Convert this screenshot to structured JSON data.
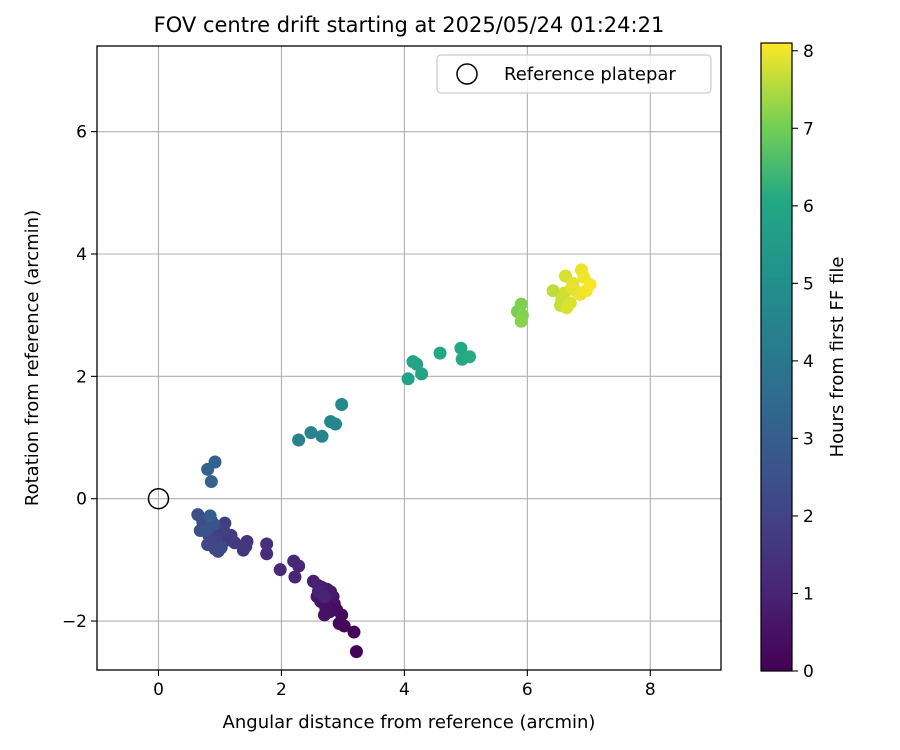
{
  "chart_data": {
    "type": "scatter",
    "title": "FOV centre drift starting at 2025/05/24 01:24:21",
    "xlabel": "Angular distance from reference (arcmin)",
    "ylabel": "Rotation from reference (arcmin)",
    "xlim": [
      -1.0,
      9.15
    ],
    "ylim": [
      -2.8,
      7.4
    ],
    "xticks": [
      0,
      2,
      4,
      6,
      8
    ],
    "yticks": [
      -2,
      0,
      2,
      4,
      6
    ],
    "xtick_labels": [
      "0",
      "2",
      "4",
      "6",
      "8"
    ],
    "ytick_labels": [
      "−2",
      "0",
      "2",
      "4",
      "6"
    ],
    "grid": true,
    "legend": {
      "position": "top-right",
      "entries": [
        {
          "label": "Reference platepar",
          "marker": "open-circle"
        }
      ]
    },
    "reference_point": {
      "x": 0,
      "y": 0
    },
    "colorbar": {
      "label": "Hours from first FF file",
      "range": [
        0,
        8.1
      ],
      "ticks": [
        0,
        1,
        2,
        3,
        4,
        5,
        6,
        7,
        8
      ],
      "tick_labels": [
        "0",
        "1",
        "2",
        "3",
        "4",
        "5",
        "6",
        "7",
        "8"
      ],
      "colormap": "viridis",
      "position": "right"
    },
    "points": [
      {
        "x": 3.22,
        "y": -2.5,
        "h": 0.05
      },
      {
        "x": 3.18,
        "y": -2.18,
        "h": 0.1
      },
      {
        "x": 3.02,
        "y": -2.08,
        "h": 0.15
      },
      {
        "x": 2.94,
        "y": -2.04,
        "h": 0.2
      },
      {
        "x": 2.98,
        "y": -1.9,
        "h": 0.25
      },
      {
        "x": 2.9,
        "y": -1.82,
        "h": 0.3
      },
      {
        "x": 2.86,
        "y": -1.72,
        "h": 0.35
      },
      {
        "x": 2.78,
        "y": -1.85,
        "h": 0.4
      },
      {
        "x": 2.72,
        "y": -1.78,
        "h": 0.45
      },
      {
        "x": 2.7,
        "y": -1.9,
        "h": 0.5
      },
      {
        "x": 2.64,
        "y": -1.68,
        "h": 0.55
      },
      {
        "x": 2.58,
        "y": -1.6,
        "h": 0.6
      },
      {
        "x": 2.84,
        "y": -1.6,
        "h": 0.65
      },
      {
        "x": 2.8,
        "y": -1.52,
        "h": 0.7
      },
      {
        "x": 2.74,
        "y": -1.48,
        "h": 0.75
      },
      {
        "x": 2.66,
        "y": -1.45,
        "h": 0.8
      },
      {
        "x": 2.6,
        "y": -1.42,
        "h": 0.85
      },
      {
        "x": 2.52,
        "y": -1.35,
        "h": 0.9
      },
      {
        "x": 2.6,
        "y": -1.52,
        "h": 0.95
      },
      {
        "x": 2.7,
        "y": -1.6,
        "h": 1.0
      },
      {
        "x": 2.28,
        "y": -1.1,
        "h": 1.05
      },
      {
        "x": 2.2,
        "y": -1.02,
        "h": 1.1
      },
      {
        "x": 2.22,
        "y": -1.28,
        "h": 1.15
      },
      {
        "x": 1.98,
        "y": -1.16,
        "h": 1.2
      },
      {
        "x": 1.76,
        "y": -0.9,
        "h": 1.3
      },
      {
        "x": 1.76,
        "y": -0.74,
        "h": 1.4
      },
      {
        "x": 1.44,
        "y": -0.7,
        "h": 1.5
      },
      {
        "x": 1.38,
        "y": -0.84,
        "h": 1.55
      },
      {
        "x": 1.42,
        "y": -0.78,
        "h": 1.6
      },
      {
        "x": 1.24,
        "y": -0.72,
        "h": 1.65
      },
      {
        "x": 1.18,
        "y": -0.6,
        "h": 1.7
      },
      {
        "x": 1.1,
        "y": -0.68,
        "h": 1.75
      },
      {
        "x": 1.06,
        "y": -0.52,
        "h": 1.8
      },
      {
        "x": 1.08,
        "y": -0.4,
        "h": 1.85
      },
      {
        "x": 0.98,
        "y": -0.55,
        "h": 1.9
      },
      {
        "x": 0.94,
        "y": -0.65,
        "h": 1.95
      },
      {
        "x": 0.88,
        "y": -0.72,
        "h": 2.0
      },
      {
        "x": 0.82,
        "y": -0.6,
        "h": 2.05
      },
      {
        "x": 0.8,
        "y": -0.75,
        "h": 2.1
      },
      {
        "x": 0.92,
        "y": -0.82,
        "h": 2.15
      },
      {
        "x": 0.97,
        "y": -0.86,
        "h": 2.2
      },
      {
        "x": 1.02,
        "y": -0.8,
        "h": 2.25
      },
      {
        "x": 0.76,
        "y": -0.46,
        "h": 2.3
      },
      {
        "x": 0.72,
        "y": -0.38,
        "h": 2.35
      },
      {
        "x": 0.68,
        "y": -0.52,
        "h": 2.4
      },
      {
        "x": 0.64,
        "y": -0.26,
        "h": 2.45
      },
      {
        "x": 0.86,
        "y": -0.36,
        "h": 2.5
      },
      {
        "x": 0.9,
        "y": -0.42,
        "h": 2.55
      },
      {
        "x": 0.78,
        "y": -0.52,
        "h": 2.6
      },
      {
        "x": 0.84,
        "y": -0.28,
        "h": 3.0
      },
      {
        "x": 0.8,
        "y": 0.48,
        "h": 3.1
      },
      {
        "x": 0.86,
        "y": 0.28,
        "h": 3.15
      },
      {
        "x": 0.92,
        "y": 0.6,
        "h": 3.2
      },
      {
        "x": 2.28,
        "y": 0.96,
        "h": 4.4
      },
      {
        "x": 2.48,
        "y": 1.08,
        "h": 4.5
      },
      {
        "x": 2.66,
        "y": 1.02,
        "h": 4.55
      },
      {
        "x": 2.8,
        "y": 1.26,
        "h": 4.6
      },
      {
        "x": 2.88,
        "y": 1.22,
        "h": 4.65
      },
      {
        "x": 2.98,
        "y": 1.54,
        "h": 4.7
      },
      {
        "x": 4.06,
        "y": 1.96,
        "h": 5.8
      },
      {
        "x": 4.14,
        "y": 2.24,
        "h": 5.85
      },
      {
        "x": 4.2,
        "y": 2.2,
        "h": 5.9
      },
      {
        "x": 4.28,
        "y": 2.04,
        "h": 5.95
      },
      {
        "x": 4.58,
        "y": 2.38,
        "h": 6.0
      },
      {
        "x": 4.92,
        "y": 2.46,
        "h": 6.05
      },
      {
        "x": 4.94,
        "y": 2.28,
        "h": 6.1
      },
      {
        "x": 5.06,
        "y": 2.32,
        "h": 6.15
      },
      {
        "x": 5.84,
        "y": 3.06,
        "h": 7.05
      },
      {
        "x": 5.9,
        "y": 3.18,
        "h": 7.1
      },
      {
        "x": 5.92,
        "y": 3.0,
        "h": 7.15
      },
      {
        "x": 5.9,
        "y": 2.9,
        "h": 7.2
      },
      {
        "x": 6.42,
        "y": 3.4,
        "h": 7.6
      },
      {
        "x": 6.54,
        "y": 3.16,
        "h": 7.65
      },
      {
        "x": 6.56,
        "y": 3.26,
        "h": 7.7
      },
      {
        "x": 6.6,
        "y": 3.36,
        "h": 7.75
      },
      {
        "x": 6.62,
        "y": 3.64,
        "h": 7.8
      },
      {
        "x": 6.64,
        "y": 3.12,
        "h": 7.82
      },
      {
        "x": 6.7,
        "y": 3.2,
        "h": 7.85
      },
      {
        "x": 6.72,
        "y": 3.44,
        "h": 7.88
      },
      {
        "x": 6.74,
        "y": 3.52,
        "h": 7.9
      },
      {
        "x": 6.78,
        "y": 3.4,
        "h": 7.92
      },
      {
        "x": 6.86,
        "y": 3.34,
        "h": 7.95
      },
      {
        "x": 6.88,
        "y": 3.74,
        "h": 7.97
      },
      {
        "x": 6.92,
        "y": 3.62,
        "h": 8.0
      },
      {
        "x": 6.96,
        "y": 3.4,
        "h": 8.02
      },
      {
        "x": 7.02,
        "y": 3.5,
        "h": 8.05
      }
    ]
  }
}
